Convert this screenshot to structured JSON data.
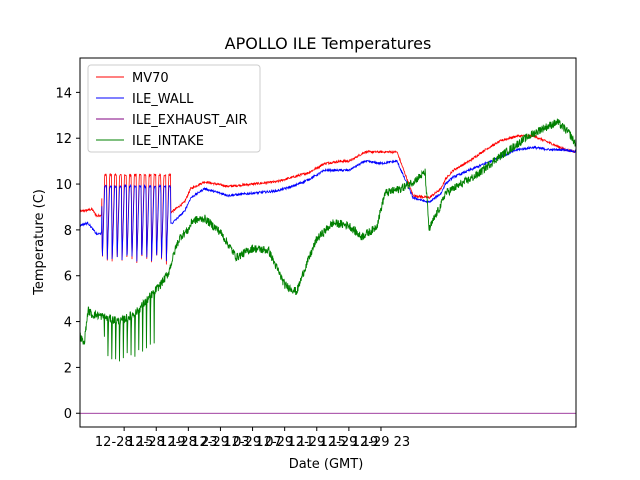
{
  "chart_data": {
    "type": "line",
    "title": "APOLLO ILE Temperatures",
    "xlabel": "Date (GMT)",
    "ylabel": "Temperature (C)",
    "xlim_hours": [
      9.5,
      71.3
    ],
    "ylim": [
      -0.6,
      15.5
    ],
    "y_ticks": [
      0,
      2,
      4,
      6,
      8,
      10,
      12,
      14
    ],
    "x_ticks": [
      {
        "hour": 15,
        "label": "12-28 15"
      },
      {
        "hour": 19,
        "label": "12-28 19"
      },
      {
        "hour": 23,
        "label": "12-28 23"
      },
      {
        "hour": 27,
        "label": "12-29 03"
      },
      {
        "hour": 31,
        "label": "12-29 07"
      },
      {
        "hour": 35,
        "label": "12-29 11"
      },
      {
        "hour": 39,
        "label": "12-29 15"
      },
      {
        "hour": 43,
        "label": "12-29 19"
      },
      {
        "hour": 47,
        "label": "12-29 23"
      }
    ],
    "legend_position": "top-left",
    "series": [
      {
        "name": "MV70",
        "color": "#ff0000",
        "x": [
          9.5,
          11.0,
          11.6,
          12.5,
          13.5,
          14.5,
          15.5,
          16.5,
          17.0,
          17.5,
          18.0,
          19.0,
          21.0,
          22.5,
          23.3,
          25.0,
          28.0,
          31.0,
          34.0,
          36.0,
          38.0,
          40.0,
          42.0,
          43.0,
          43.6,
          44.0,
          45.0,
          47.0,
          49.0,
          51.0,
          53.0,
          54.5,
          55.0,
          56.0,
          58.0,
          60.0,
          62.0,
          64.0,
          66.0,
          68.0,
          70.0,
          71.3
        ],
        "values": [
          8.8,
          8.9,
          8.6,
          8.7,
          8.8,
          8.8,
          8.9,
          9.0,
          9.1,
          9.3,
          8.8,
          8.6,
          8.8,
          9.2,
          9.8,
          10.1,
          9.9,
          10.0,
          10.1,
          10.3,
          10.5,
          10.9,
          11.0,
          11.0,
          11.1,
          11.2,
          11.4,
          11.4,
          11.4,
          9.5,
          9.4,
          9.8,
          10.2,
          10.6,
          11.0,
          11.5,
          11.9,
          12.1,
          12.1,
          11.8,
          11.5,
          11.4
        ],
        "osc_start_hour": 12.2,
        "osc_end_hour": 20.8,
        "osc_cycles": 14,
        "osc_high": 10.4,
        "osc_low": 6.5
      },
      {
        "name": "ILE_WALL",
        "color": "#0000ff",
        "x": [
          9.5,
          10.5,
          11.6,
          12.5,
          13.5,
          14.5,
          15.5,
          16.5,
          17.5,
          18.0,
          19.0,
          21.0,
          22.5,
          23.3,
          25.0,
          28.0,
          31.0,
          34.0,
          36.0,
          38.0,
          40.0,
          42.0,
          43.0,
          44.0,
          45.0,
          47.0,
          49.0,
          51.0,
          53.0,
          54.5,
          55.0,
          56.0,
          58.0,
          60.0,
          62.0,
          64.0,
          66.0,
          68.0,
          70.0,
          71.3
        ],
        "values": [
          8.2,
          8.3,
          7.8,
          7.9,
          7.9,
          8.0,
          8.1,
          8.2,
          8.3,
          8.1,
          8.0,
          8.3,
          8.8,
          9.4,
          9.8,
          9.5,
          9.6,
          9.7,
          9.9,
          10.2,
          10.6,
          10.6,
          10.6,
          10.8,
          11.0,
          10.9,
          11.0,
          9.4,
          9.2,
          9.6,
          10.0,
          10.3,
          10.6,
          10.9,
          11.2,
          11.5,
          11.6,
          11.5,
          11.5,
          11.4
        ],
        "osc_start_hour": 12.2,
        "osc_end_hour": 20.8,
        "osc_cycles": 14,
        "osc_high": 9.9,
        "osc_low": 6.6
      },
      {
        "name": "ILE_EXHAUST_AIR",
        "color": "#800080",
        "x": [
          9.5,
          71.3
        ],
        "values": [
          0.0,
          0.0
        ]
      },
      {
        "name": "ILE_INTAKE",
        "color": "#008000",
        "x": [
          9.5,
          10.0,
          10.5,
          11.0,
          11.5,
          12.5,
          13.5,
          14.5,
          15.5,
          16.5,
          17.5,
          18.5,
          19.5,
          20.5,
          21.0,
          21.5,
          22.0,
          23.0,
          23.5,
          25.0,
          27.0,
          29.0,
          31.0,
          33.0,
          35.0,
          36.5,
          37.5,
          39.0,
          41.0,
          43.0,
          44.5,
          46.0,
          46.5,
          47.5,
          49.5,
          51.0,
          52.5,
          53.0,
          53.5,
          54.5,
          55.0,
          57.0,
          59.0,
          61.0,
          63.0,
          65.0,
          67.0,
          69.0,
          70.5,
          71.3
        ],
        "values": [
          3.4,
          3.0,
          4.5,
          4.3,
          4.3,
          4.2,
          4.1,
          4.0,
          4.2,
          4.4,
          4.8,
          5.2,
          5.6,
          6.1,
          6.7,
          7.3,
          7.7,
          8.0,
          8.4,
          8.5,
          7.9,
          6.8,
          7.2,
          7.1,
          5.6,
          5.3,
          6.3,
          7.6,
          8.3,
          8.2,
          7.7,
          8.0,
          8.2,
          9.6,
          9.8,
          10.1,
          10.5,
          8.0,
          8.4,
          9.1,
          9.6,
          10.0,
          10.4,
          11.0,
          11.5,
          12.0,
          12.4,
          12.7,
          12.2,
          11.7
        ],
        "osc_start_hour": 12.5,
        "osc_end_hour": 19.2,
        "osc_cycles": 14,
        "osc_low": 2.3
      }
    ]
  }
}
